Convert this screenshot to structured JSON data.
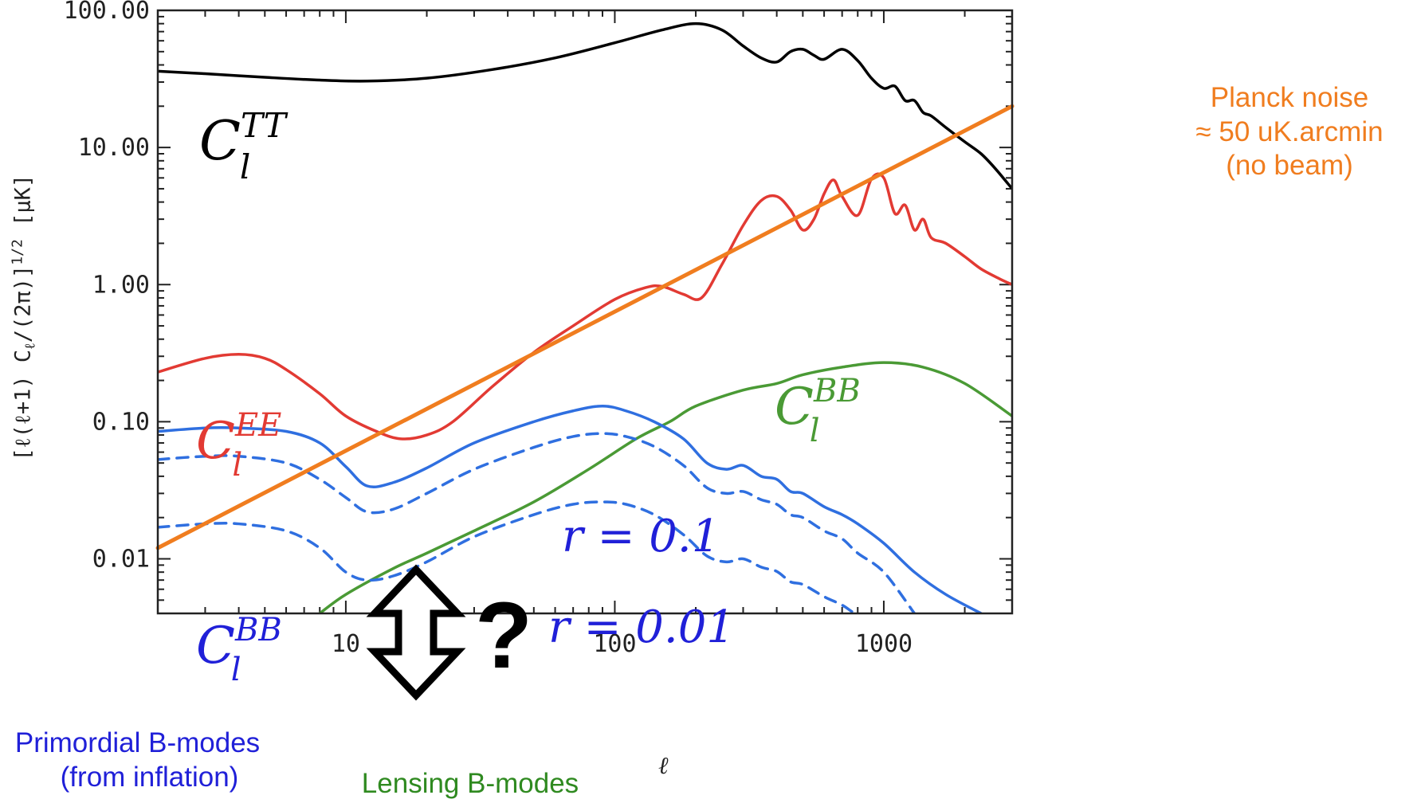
{
  "chart_data": {
    "type": "line",
    "xscale": "log",
    "yscale": "log",
    "xlim": [
      2,
      3000
    ],
    "ylim": [
      0.004,
      100
    ],
    "xlabel": "ℓ",
    "ylabel": "[ℓ(ℓ+1) C",
    "ylabel_sub": "ℓ",
    "ylabel_tail": "/(2π)]",
    "ylabel_sup": "1/2",
    "ylabel_unit": "[μK]",
    "x_ticks": [
      "10",
      "100",
      "1000"
    ],
    "x_tick_values": [
      10,
      100,
      1000
    ],
    "y_ticks": [
      "0.01",
      "0.10",
      "1.00",
      "10.00",
      "100.00"
    ],
    "y_tick_values": [
      0.01,
      0.1,
      1,
      10,
      100
    ],
    "series": [
      {
        "name": "C_l^TT",
        "color": "#000000",
        "style": "solid",
        "x": [
          2,
          3,
          5,
          8,
          12,
          20,
          35,
          60,
          100,
          150,
          200,
          250,
          300,
          350,
          400,
          450,
          500,
          550,
          600,
          700,
          800,
          900,
          1000,
          1100,
          1200,
          1300,
          1400,
          1500,
          1700,
          2000,
          2300,
          2600,
          3000
        ],
        "y": [
          36,
          34.5,
          32.5,
          31,
          30.5,
          32,
          37,
          45,
          58,
          72,
          80,
          72,
          55,
          45,
          42,
          50,
          52,
          47,
          44,
          52,
          43,
          32,
          27,
          28,
          22,
          22,
          18,
          17,
          14,
          11,
          9,
          7,
          5
        ]
      },
      {
        "name": "C_l^EE",
        "color": "#e23a33",
        "style": "solid",
        "x": [
          2,
          3,
          4,
          5,
          6,
          8,
          10,
          13,
          16,
          20,
          25,
          35,
          50,
          70,
          100,
          130,
          150,
          180,
          210,
          250,
          300,
          350,
          400,
          450,
          500,
          550,
          600,
          650,
          700,
          800,
          900,
          1000,
          1100,
          1200,
          1300,
          1400,
          1500,
          1700,
          2000,
          2300,
          2700,
          3000
        ],
        "y": [
          0.23,
          0.29,
          0.31,
          0.29,
          0.24,
          0.16,
          0.11,
          0.085,
          0.075,
          0.08,
          0.1,
          0.18,
          0.32,
          0.5,
          0.78,
          0.95,
          0.97,
          0.85,
          0.8,
          1.4,
          2.7,
          4.1,
          4.4,
          3.5,
          2.5,
          3.0,
          4.6,
          5.8,
          4.4,
          3.2,
          5.9,
          6.0,
          3.3,
          3.8,
          2.5,
          3.0,
          2.2,
          2.0,
          1.6,
          1.3,
          1.1,
          1.0
        ]
      },
      {
        "name": "C_l^BB (r = 0.1)",
        "color": "#2f6fe0",
        "style": "solid",
        "x": [
          2,
          3,
          4,
          6,
          8,
          10,
          12,
          15,
          20,
          30,
          50,
          70,
          90,
          110,
          140,
          180,
          220,
          260,
          300,
          350,
          400,
          450,
          500,
          600,
          700,
          800,
          1000,
          1300,
          1700,
          2300
        ],
        "y": [
          0.085,
          0.09,
          0.09,
          0.085,
          0.07,
          0.047,
          0.034,
          0.036,
          0.046,
          0.07,
          0.1,
          0.12,
          0.13,
          0.12,
          0.1,
          0.075,
          0.05,
          0.045,
          0.048,
          0.04,
          0.038,
          0.031,
          0.03,
          0.024,
          0.021,
          0.018,
          0.013,
          0.008,
          0.0055,
          0.004
        ]
      },
      {
        "name": "C_l^BB (r = 0.01)",
        "color": "#2f6fe0",
        "style": "dashed",
        "x": [
          2,
          3,
          4,
          6,
          8,
          10,
          12,
          15,
          20,
          30,
          50,
          70,
          90,
          110,
          140,
          180,
          220,
          260,
          300,
          350,
          400,
          450,
          500,
          600,
          700,
          800,
          1000,
          1300
        ],
        "y": [
          0.053,
          0.056,
          0.056,
          0.05,
          0.038,
          0.028,
          0.022,
          0.023,
          0.03,
          0.045,
          0.065,
          0.078,
          0.082,
          0.078,
          0.066,
          0.048,
          0.033,
          0.03,
          0.031,
          0.027,
          0.025,
          0.021,
          0.02,
          0.016,
          0.014,
          0.011,
          0.008,
          0.004
        ]
      },
      {
        "name": "C_l^BB (r = 0.01) low",
        "color": "#2f6fe0",
        "style": "dashed",
        "x": [
          2,
          3,
          4,
          6,
          8,
          10,
          12,
          15,
          20,
          30,
          50,
          70,
          90,
          110,
          140,
          180,
          220,
          260,
          300,
          350,
          400,
          450,
          500,
          600,
          700,
          800,
          1000
        ],
        "y": [
          0.017,
          0.018,
          0.018,
          0.016,
          0.012,
          0.008,
          0.007,
          0.0075,
          0.0095,
          0.0145,
          0.021,
          0.025,
          0.026,
          0.025,
          0.021,
          0.015,
          0.0105,
          0.0095,
          0.01,
          0.0087,
          0.0081,
          0.0068,
          0.0065,
          0.0053,
          0.0046,
          0.0039,
          0.0033
        ]
      },
      {
        "name": "C_l^BB lensing",
        "color": "#4a9a35",
        "style": "solid",
        "x": [
          8,
          10,
          15,
          20,
          30,
          50,
          80,
          120,
          160,
          200,
          300,
          400,
          500,
          700,
          1000,
          1400,
          2000,
          3000
        ],
        "y": [
          0.004,
          0.0055,
          0.0085,
          0.011,
          0.016,
          0.026,
          0.045,
          0.075,
          0.1,
          0.13,
          0.17,
          0.19,
          0.22,
          0.25,
          0.27,
          0.25,
          0.19,
          0.11
        ]
      },
      {
        "name": "Planck noise",
        "color": "#f07d1f",
        "style": "solid",
        "x": [
          2,
          3000
        ],
        "y": [
          0.012,
          20
        ]
      }
    ],
    "labels": {
      "tt": {
        "base": "C",
        "sub": "l",
        "sup": "TT"
      },
      "ee": {
        "base": "C",
        "sub": "l",
        "sup": "EE"
      },
      "bb_lens": {
        "base": "C",
        "sub": "l",
        "sup": "BB"
      },
      "bb_prim": {
        "base": "C",
        "sub": "l",
        "sup": "BB"
      },
      "r1": "r = 0.1",
      "r2": "r = 0.01",
      "question": "?"
    }
  },
  "annotations": {
    "planck_line1": "Planck noise",
    "planck_line2": "≈ 50 uK.arcmin",
    "planck_line3": "(no beam)",
    "prim_line1": "Primordial B-modes",
    "prim_line2": "(from inflation)",
    "lensing": "Lensing B-modes"
  },
  "colors": {
    "tt": "#000000",
    "ee": "#e23a33",
    "bb": "#2f6fe0",
    "lensing": "#4a9a35",
    "noise": "#f07d1f"
  }
}
